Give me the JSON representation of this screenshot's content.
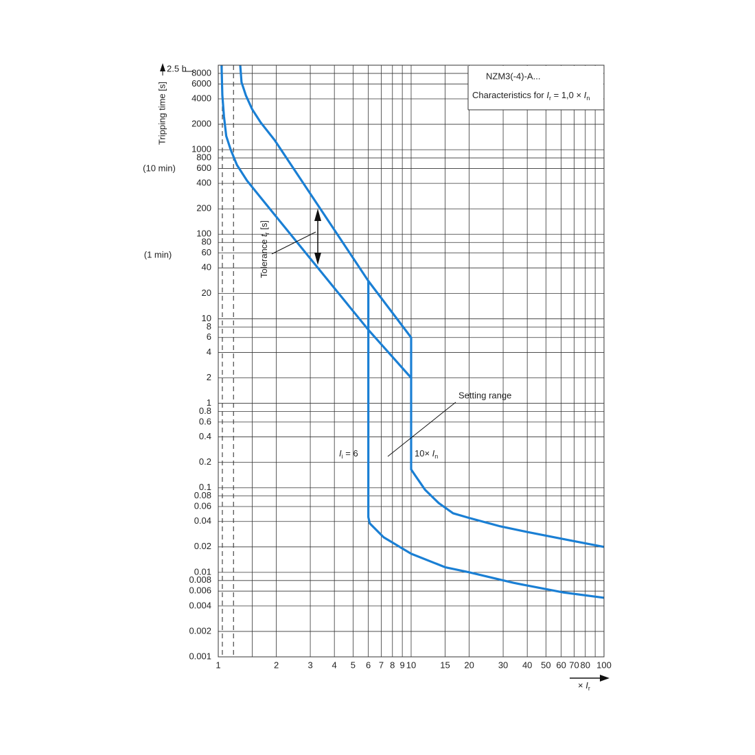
{
  "chart_data": {
    "type": "line",
    "title": "NZM3(-4)-A...",
    "subtitle": [
      "Characteristics for ",
      "I",
      "r",
      " = 1,0 × ",
      "I",
      "n"
    ],
    "y_label": "Tripping time [s]",
    "x_label": [
      "× ",
      "I",
      "r"
    ],
    "time_marks": [
      "2.5 h",
      "(10 min)",
      "(1 min)"
    ],
    "tolerance_label": [
      "Tolerance ",
      "t",
      "r",
      " [s]"
    ],
    "setting_range_label": "Setting range",
    "ii_label": [
      "I",
      "i",
      " = 6"
    ],
    "in_label": [
      "10× ",
      "I",
      "n"
    ],
    "log_x": true,
    "log_y": true,
    "grid": true,
    "xlim": [
      1,
      100
    ],
    "ylim": [
      0.001,
      10000
    ],
    "xticks": [
      1,
      2,
      3,
      4,
      5,
      6,
      7,
      8,
      9,
      10,
      15,
      20,
      30,
      40,
      50,
      60,
      70,
      80,
      100
    ],
    "xminor": [
      1.5,
      90
    ],
    "yticks": [
      0.001,
      0.002,
      0.004,
      0.006,
      0.008,
      0.01,
      0.02,
      0.04,
      0.06,
      0.08,
      0.1,
      0.2,
      0.4,
      0.6,
      0.8,
      1,
      2,
      4,
      6,
      8,
      10,
      20,
      40,
      60,
      80,
      100,
      200,
      400,
      600,
      800,
      1000,
      2000,
      4000,
      6000,
      8000
    ],
    "dashed_lines": [
      1.05,
      1.2
    ],
    "series": [
      {
        "color": "#1a7fd4",
        "x": [
          1.3,
          1.32,
          1.39,
          1.5,
          1.66,
          1.96,
          6,
          10,
          10,
          10.5,
          11.8,
          13.9,
          16.5,
          20,
          29,
          40,
          66,
          100
        ],
        "values": [
          10000,
          6300,
          4400,
          3000,
          2100,
          1300,
          28,
          6,
          0.165,
          0.14,
          0.095,
          0.066,
          0.05,
          0.044,
          0.035,
          0.03,
          0.024,
          0.02
        ]
      },
      {
        "color": "#1a7fd4",
        "x": [
          1.04,
          1.05,
          1.07,
          1.1,
          1.16,
          1.25,
          1.41,
          1.96,
          6,
          10
        ],
        "values": [
          10000,
          4400,
          2500,
          1450,
          1000,
          660,
          430,
          170,
          7.4,
          2
        ]
      },
      {
        "color": "#1a7fd4",
        "x": [
          6,
          6,
          6.1,
          7.2,
          10,
          15,
          20,
          34,
          61,
          100
        ],
        "values": [
          28,
          0.045,
          0.038,
          0.026,
          0.0166,
          0.0115,
          0.01,
          0.0075,
          0.0058,
          0.005
        ]
      }
    ]
  }
}
